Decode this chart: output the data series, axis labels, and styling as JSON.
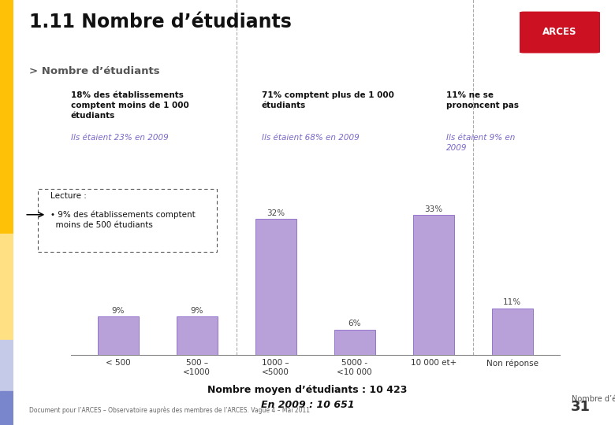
{
  "title": "1.11 Nombre d’étudiants",
  "subtitle": "> Nombre d’étudiants",
  "categories": [
    "< 500",
    "500 –\n<1000",
    "1000 –\n<5000",
    "5000 -\n<10 000",
    "10 000 et+",
    "Non réponse"
  ],
  "values": [
    9,
    9,
    32,
    6,
    33,
    11
  ],
  "bar_color": "#b8a0d8",
  "bar_edge_color": "#9575cd",
  "background_color": "#ffffff",
  "left_panel_label1": "18% des établissements\ncomptent moins de 1 000\nétudiants",
  "left_panel_label2": "Ils étaient 23% en 2009",
  "mid_panel_label1": "71% comptent plus de 1 000\nétudiants",
  "mid_panel_label2": "Ils étaient 68% en 2009",
  "right_panel_label1": "11% ne se\nprononcent pas",
  "right_panel_label2": "Ils étaient 9% en\n2009",
  "xlabel": "Nombre d’étudiants",
  "footer_bold": "Nombre moyen d’étudiants : 10 423",
  "footer_italic": "En 2009 : 10 651",
  "footnote": "Document pour l’ARCES – Observatoire auprès des membres de l’ARCES. Vague 4 – Mai 2011",
  "page_number": "31",
  "stripe1_color": "#ffc107",
  "stripe2_color": "#ffe082",
  "stripe3_color": "#c5cae9",
  "stripe4_color": "#7986cb",
  "italic_color": "#7b68c8",
  "divider_color": "#aaaaaa",
  "lecture_border_color": "#555555",
  "arces_color": "#cc1122"
}
